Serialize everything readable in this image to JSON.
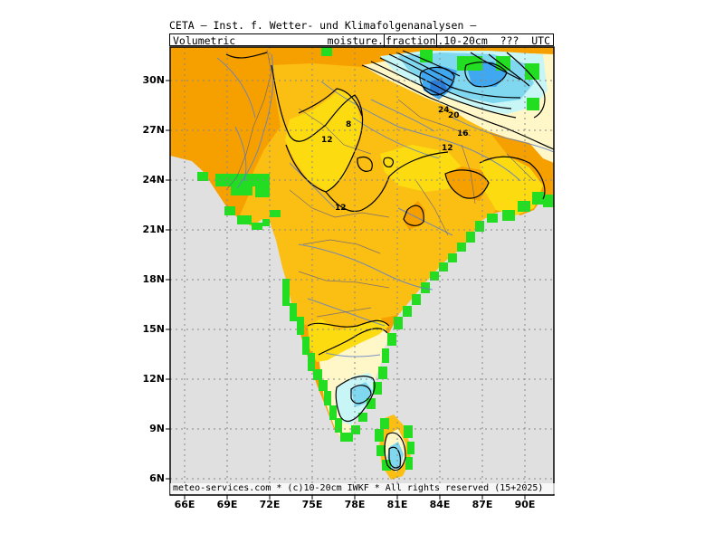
{
  "header": {
    "line1": "CETA — Inst. f. Wetter- und Klimafolgenanalysen —",
    "line2_left": "Volumetric",
    "line2_pre": "moisture.",
    "line2_box": "fraction",
    "line2_post": ".10-20cm  ???  UTC"
  },
  "axes": {
    "y_labels": [
      "30N",
      "27N",
      "24N",
      "21N",
      "18N",
      "15N",
      "12N",
      "9N",
      "6N"
    ],
    "x_labels": [
      "66E",
      "69E",
      "72E",
      "75E",
      "78E",
      "81E",
      "84E",
      "87E",
      "90E"
    ]
  },
  "contour_labels": [
    "8",
    "12",
    "12",
    "12",
    "16",
    "20",
    "24"
  ],
  "footer": "meteo-services.com * (c)10-20cm IWKF * All rights reserved (15+2025)",
  "colors": {
    "ocean": "#e0e0e0",
    "dark_orange": "#f6a000",
    "orange": "#fbbf13",
    "yellow": "#fcdc10",
    "cream": "#fff7c8",
    "light_cyan": "#c8f6f6",
    "cyan": "#80d8f0",
    "blue": "#40a8f0",
    "green": "#22dd22",
    "river": "#6080c8",
    "border": "#000000"
  }
}
